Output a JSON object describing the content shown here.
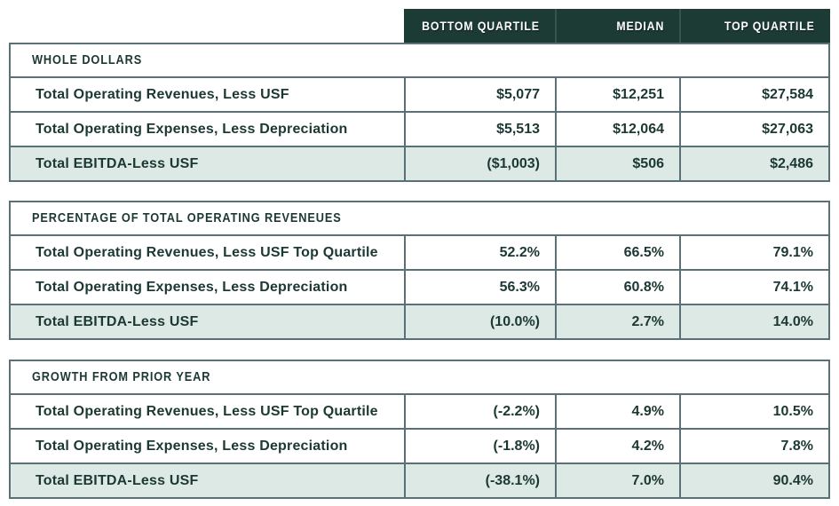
{
  "chart_data": {
    "type": "table",
    "columns": [
      "BOTTOM QUARTILE",
      "MEDIAN",
      "TOP QUARTILE"
    ],
    "sections": [
      {
        "title": "WHOLE DOLLARS",
        "rows": [
          {
            "label": "Total Operating Revenues, Less USF",
            "values": [
              "$5,077",
              "$12,251",
              "$27,584"
            ]
          },
          {
            "label": "Total Operating Expenses, Less Depreciation",
            "values": [
              "$5,513",
              "$12,064",
              "$27,063"
            ]
          },
          {
            "label": "Total EBITDA-Less USF",
            "values": [
              "($1,003)",
              "$506",
              "$2,486"
            ],
            "highlight": true
          }
        ]
      },
      {
        "title": "PERCENTAGE OF TOTAL OPERATING REVENEUES",
        "rows": [
          {
            "label": "Total Operating Revenues, Less USF Top Quartile",
            "values": [
              "52.2%",
              "66.5%",
              "79.1%"
            ]
          },
          {
            "label": "Total Operating Expenses, Less Depreciation",
            "values": [
              "56.3%",
              "60.8%",
              "74.1%"
            ]
          },
          {
            "label": "Total EBITDA-Less USF",
            "values": [
              "(10.0%)",
              "2.7%",
              "14.0%"
            ],
            "highlight": true
          }
        ]
      },
      {
        "title": "GROWTH FROM PRIOR YEAR",
        "rows": [
          {
            "label": "Total Operating Revenues, Less USF Top Quartile",
            "values": [
              "(-2.2%)",
              "4.9%",
              "10.5%"
            ]
          },
          {
            "label": "Total Operating Expenses, Less Depreciation",
            "values": [
              "(-1.8%)",
              "4.2%",
              "7.8%"
            ]
          },
          {
            "label": "Total EBITDA-Less USF",
            "values": [
              "(-38.1%)",
              "7.0%",
              "90.4%"
            ],
            "highlight": true
          }
        ]
      }
    ],
    "colors": {
      "header_bg": "#1d3b35",
      "highlight_row_bg": "#dde9e4",
      "border": "#5a7076",
      "text": "#1c3833"
    }
  }
}
